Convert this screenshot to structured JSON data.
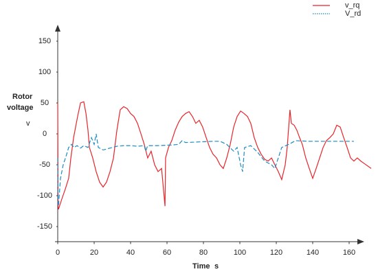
{
  "chart_data": {
    "type": "line",
    "y_label_lines": [
      "Rotor",
      "voltage"
    ],
    "y_unit": "v",
    "x_label": "Time",
    "x_unit": "s",
    "xlim": [
      0,
      175
    ],
    "xticks": [
      0,
      20,
      40,
      60,
      80,
      100,
      120,
      140,
      160
    ],
    "ylim": [
      -175,
      175
    ],
    "yticks": [
      -150,
      -100,
      -50,
      0,
      50,
      100,
      150
    ],
    "grid": false,
    "legend": "top-right",
    "series": [
      {
        "name": "v_rq",
        "color": "#e8232a",
        "style": "solid",
        "x": [
          0,
          0.2,
          0.4,
          2.3,
          4.2,
          6,
          7.2,
          8.7,
          9.8,
          10.9,
          12.5,
          14.3,
          15.5,
          16.6,
          17.4,
          19.2,
          21.1,
          23,
          24.9,
          26.8,
          28.7,
          30.6,
          32.5,
          34.3,
          36.2,
          38.1,
          40,
          41.9,
          43.8,
          45.7,
          47.5,
          49.4,
          51.3,
          53.2,
          55.1,
          57,
          58.9,
          59.2,
          60.8,
          62.6,
          64.5,
          66.4,
          68.3,
          70.2,
          72.1,
          74,
          75.8,
          77.7,
          79.6,
          81.5,
          83.4,
          85.3,
          87.2,
          89.1,
          90.9,
          92.8,
          94.7,
          96.6,
          98.5,
          100.4,
          102.3,
          104.2,
          106,
          107.9,
          109.8,
          111.7,
          113.6,
          115.5,
          117.4,
          119.2,
          121.1,
          123,
          124.9,
          126,
          127.5,
          128.3,
          129.8,
          131.3,
          132.8,
          134.3,
          136.2,
          138.1,
          140,
          141.9,
          143.8,
          145.7,
          147.5,
          149.4,
          151.3,
          153.2,
          155.1,
          157,
          158.9,
          160.8,
          162.6,
          164.5,
          166.4,
          168.3,
          172.1
        ],
        "values": [
          50,
          -117,
          -122,
          -105,
          -89,
          -72,
          -39,
          -6,
          11,
          28,
          50,
          52,
          33,
          6,
          -22,
          -39,
          -61,
          -78,
          -86,
          -78,
          -61,
          -39,
          6,
          39,
          44,
          41,
          33,
          28,
          17,
          0,
          -17,
          -39,
          -28,
          -50,
          -61,
          -56,
          -117,
          -39,
          -22,
          -11,
          6,
          19,
          28,
          33,
          36,
          28,
          17,
          22,
          11,
          -6,
          -22,
          -33,
          -39,
          -50,
          -56,
          -39,
          -17,
          11,
          28,
          37,
          33,
          28,
          17,
          -6,
          -22,
          -33,
          -41,
          -44,
          -39,
          -50,
          -61,
          -74,
          -50,
          -22,
          39,
          17,
          14,
          6,
          -6,
          -17,
          -39,
          -56,
          -72,
          -56,
          -39,
          -22,
          -11,
          -6,
          0,
          14,
          11,
          -6,
          -22,
          -39,
          -44,
          -39,
          -44,
          -48,
          -56
        ]
      },
      {
        "name": "V_rd",
        "color": "#1a8bc4",
        "style": "dashed",
        "x": [
          0,
          0.2,
          0.4,
          1.5,
          3,
          4.9,
          6,
          7.5,
          9,
          10.6,
          12.5,
          14.3,
          16.6,
          18.5,
          20,
          21.1,
          22.3,
          24.9,
          28.7,
          32.5,
          36.2,
          40,
          43.8,
          47.5,
          48.3,
          49.4,
          55.1,
          62.6,
          66.4,
          68.3,
          70.2,
          77.7,
          85.3,
          89.1,
          92.8,
          96.6,
          98.5,
          100.4,
          101.5,
          102.6,
          106,
          109.8,
          113.6,
          117.4,
          119.2,
          121.1,
          123,
          126.8,
          130.6,
          138.1,
          145.7,
          153.2,
          162.6
        ],
        "values": [
          -39,
          -105,
          -117,
          -72,
          -50,
          -33,
          -22,
          -17,
          -22,
          -19,
          -23,
          -19,
          -22,
          -6,
          -17,
          0,
          -22,
          -26,
          -23,
          -20,
          -19,
          -19,
          -20,
          -19,
          -28,
          -19,
          -19,
          -18,
          -17,
          -11,
          -14,
          -13,
          -12,
          -12,
          -17,
          -28,
          -22,
          -50,
          -61,
          -22,
          -19,
          -30,
          -44,
          -50,
          -56,
          -39,
          -22,
          -17,
          -11,
          -12,
          -12,
          -12,
          -12
        ]
      }
    ]
  }
}
